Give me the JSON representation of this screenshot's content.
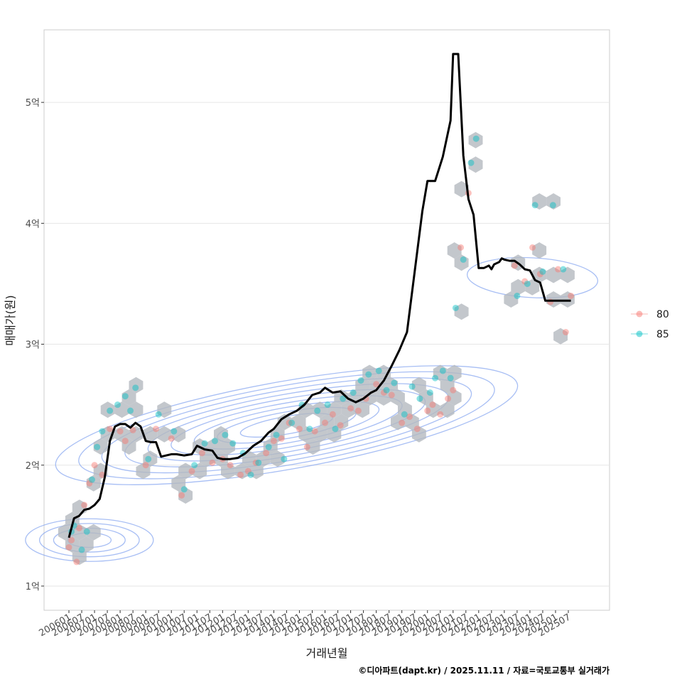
{
  "chart_data": {
    "type": "scatter",
    "title": "",
    "xlabel": "거래년월",
    "ylabel": "매매가(원)",
    "caption": "©디아파트(dapt.kr) / 2025.11.11 / 자료=국토교통부 실거래가",
    "ylim": [
      0.8,
      5.6
    ],
    "y_ticks": [
      {
        "value": 1,
        "label": "1억"
      },
      {
        "value": 2,
        "label": "2억"
      },
      {
        "value": 3,
        "label": "3억"
      },
      {
        "value": 4,
        "label": "4억"
      },
      {
        "value": 5,
        "label": "5억"
      }
    ],
    "x_tick_labels": [
      "200601",
      "200607",
      "200701",
      "200707",
      "200801",
      "200807",
      "200901",
      "200907",
      "201001",
      "201007",
      "201101",
      "201107",
      "201201",
      "201207",
      "201301",
      "201307",
      "201401",
      "201407",
      "201501",
      "201507",
      "201601",
      "201607",
      "201701",
      "201707",
      "201801",
      "201807",
      "201901",
      "201907",
      "202001",
      "202007",
      "202101",
      "202107",
      "202201",
      "202207",
      "202301",
      "202307",
      "202401",
      "202407",
      "202501",
      "202507"
    ],
    "legend": {
      "position": "right",
      "entries": [
        {
          "name": "80",
          "color": "#F8766D"
        },
        {
          "name": "85",
          "color": "#00BFC4"
        }
      ]
    },
    "colors": {
      "trend": "#000000",
      "hex": "#b4b9bf",
      "contour": "#8aa8f0",
      "grid": "#e6e6e6"
    },
    "trend_line": {
      "name": "moving average",
      "x": [
        2006.0,
        2006.2,
        2006.4,
        2006.6,
        2006.8,
        2007.0,
        2007.2,
        2007.4,
        2007.6,
        2007.8,
        2008.0,
        2008.2,
        2008.4,
        2008.6,
        2008.8,
        2009.0,
        2009.2,
        2009.4,
        2009.6,
        2009.8,
        2010.0,
        2010.2,
        2010.5,
        2010.8,
        2011.0,
        2011.3,
        2011.6,
        2011.8,
        2012.0,
        2012.3,
        2012.6,
        2012.9,
        2013.2,
        2013.5,
        2013.8,
        2014.0,
        2014.3,
        2014.6,
        2014.9,
        2015.2,
        2015.5,
        2015.8,
        2016.0,
        2016.3,
        2016.6,
        2016.9,
        2017.2,
        2017.5,
        2017.8,
        2018.0,
        2018.3,
        2018.6,
        2018.9,
        2019.2,
        2019.5,
        2019.8,
        2020.0,
        2020.3,
        2020.6,
        2020.9,
        2021.0,
        2021.2,
        2021.4,
        2021.6,
        2021.8,
        2022.0,
        2022.2,
        2022.4,
        2022.5,
        2022.6,
        2022.8,
        2022.9,
        2023.0,
        2023.2,
        2023.4,
        2023.6,
        2023.8,
        2024.0,
        2024.2,
        2024.4,
        2024.6,
        2024.8,
        2025.0,
        2025.2,
        2025.4,
        2025.6
      ],
      "y": [
        1.4,
        1.56,
        1.58,
        1.63,
        1.64,
        1.67,
        1.72,
        1.9,
        2.2,
        2.32,
        2.34,
        2.34,
        2.31,
        2.35,
        2.32,
        2.2,
        2.19,
        2.19,
        2.07,
        2.08,
        2.09,
        2.09,
        2.08,
        2.09,
        2.16,
        2.13,
        2.12,
        2.06,
        2.05,
        2.05,
        2.06,
        2.1,
        2.16,
        2.2,
        2.27,
        2.3,
        2.38,
        2.42,
        2.45,
        2.5,
        2.58,
        2.6,
        2.64,
        2.6,
        2.61,
        2.55,
        2.52,
        2.55,
        2.6,
        2.62,
        2.7,
        2.82,
        2.95,
        3.1,
        3.6,
        4.1,
        4.35,
        4.35,
        4.55,
        4.85,
        5.4,
        5.4,
        4.56,
        4.2,
        4.07,
        3.63,
        3.63,
        3.65,
        3.62,
        3.66,
        3.68,
        3.71,
        3.7,
        3.69,
        3.69,
        3.66,
        3.62,
        3.61,
        3.53,
        3.51,
        3.36,
        3.36,
        3.36,
        3.36,
        3.36,
        3.36
      ]
    },
    "series": [
      {
        "name": "80",
        "x": [
          2006.0,
          2006.1,
          2006.3,
          2006.4,
          2006.6,
          2006.8,
          2007.0,
          2007.3,
          2007.6,
          2008.0,
          2008.2,
          2008.5,
          2009.0,
          2009.4,
          2010.0,
          2010.4,
          2010.8,
          2011.2,
          2011.6,
          2012.0,
          2012.3,
          2012.7,
          2013.0,
          2013.3,
          2013.7,
          2014.0,
          2014.3,
          2014.6,
          2015.0,
          2015.3,
          2015.6,
          2016.0,
          2016.3,
          2016.6,
          2017.0,
          2017.3,
          2017.6,
          2018.0,
          2018.3,
          2018.6,
          2019.0,
          2019.3,
          2019.6,
          2020.0,
          2020.2,
          2020.5,
          2020.8,
          2021.0,
          2021.3,
          2021.6,
          2023.4,
          2023.8,
          2024.1,
          2024.4,
          2024.8,
          2025.1,
          2025.4,
          2025.6
        ],
        "y": [
          1.32,
          1.38,
          1.2,
          1.48,
          1.67,
          1.85,
          2.0,
          1.92,
          2.3,
          2.28,
          2.2,
          2.29,
          2.0,
          2.3,
          2.22,
          1.75,
          1.95,
          2.1,
          2.02,
          2.05,
          2.0,
          1.92,
          1.95,
          2.02,
          2.1,
          2.2,
          2.22,
          2.35,
          2.3,
          2.15,
          2.28,
          2.35,
          2.42,
          2.33,
          2.47,
          2.45,
          2.55,
          2.67,
          2.6,
          2.58,
          2.35,
          2.4,
          2.3,
          2.45,
          2.5,
          2.42,
          2.55,
          2.62,
          3.8,
          4.25,
          3.65,
          3.52,
          3.8,
          3.58,
          3.35,
          3.62,
          3.1,
          3.4
        ]
      },
      {
        "name": "85",
        "x": [
          2006.1,
          2006.2,
          2006.5,
          2006.7,
          2006.9,
          2007.1,
          2007.3,
          2007.6,
          2007.9,
          2008.2,
          2008.4,
          2008.6,
          2009.1,
          2009.5,
          2010.1,
          2010.5,
          2010.9,
          2011.3,
          2011.7,
          2012.1,
          2012.4,
          2012.8,
          2013.1,
          2013.4,
          2013.8,
          2014.1,
          2014.4,
          2014.7,
          2015.1,
          2015.4,
          2015.7,
          2016.1,
          2016.4,
          2016.7,
          2017.1,
          2017.4,
          2017.7,
          2018.1,
          2018.4,
          2018.7,
          2019.1,
          2019.4,
          2019.7,
          2020.1,
          2020.3,
          2020.6,
          2020.9,
          2021.1,
          2021.4,
          2021.7,
          2021.9,
          2023.5,
          2023.9,
          2024.2,
          2024.5,
          2024.9,
          2025.3
        ],
        "y": [
          1.45,
          1.5,
          1.3,
          1.45,
          1.88,
          2.15,
          2.28,
          2.45,
          2.5,
          2.57,
          2.45,
          2.64,
          2.05,
          2.42,
          2.28,
          1.8,
          2.0,
          2.18,
          2.2,
          2.25,
          2.18,
          2.1,
          1.92,
          2.02,
          2.15,
          2.25,
          2.05,
          2.35,
          2.5,
          2.3,
          2.45,
          2.5,
          2.3,
          2.55,
          2.6,
          2.7,
          2.75,
          2.78,
          2.62,
          2.68,
          2.42,
          2.65,
          2.55,
          2.6,
          2.72,
          2.78,
          2.72,
          3.3,
          3.7,
          4.5,
          4.7,
          3.4,
          3.5,
          4.15,
          3.6,
          4.15,
          3.62
        ]
      }
    ]
  }
}
